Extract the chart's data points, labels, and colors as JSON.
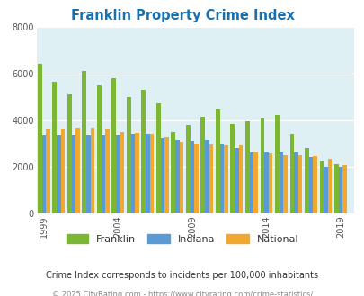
{
  "title": "Franklin Property Crime Index",
  "title_color": "#1a6faf",
  "years": [
    1999,
    2000,
    2001,
    2002,
    2003,
    2004,
    2005,
    2006,
    2007,
    2008,
    2009,
    2010,
    2011,
    2012,
    2013,
    2014,
    2015,
    2016,
    2017,
    2018,
    2019
  ],
  "franklin": [
    6400,
    5650,
    5100,
    6100,
    5500,
    5800,
    5000,
    5300,
    4700,
    3500,
    3800,
    4150,
    4450,
    3850,
    3950,
    4050,
    4200,
    3400,
    2800,
    2200,
    2100
  ],
  "indiana": [
    3350,
    3350,
    3350,
    3350,
    3350,
    3350,
    3400,
    3400,
    3200,
    3150,
    3100,
    3150,
    3000,
    2800,
    2600,
    2600,
    2600,
    2600,
    2400,
    2000,
    1980
  ],
  "national": [
    3600,
    3600,
    3650,
    3650,
    3600,
    3500,
    3450,
    3400,
    3250,
    3050,
    3000,
    2950,
    2900,
    2900,
    2600,
    2550,
    2500,
    2500,
    2450,
    2350,
    2050
  ],
  "franklin_color": "#7cb734",
  "indiana_color": "#5b9bd5",
  "national_color": "#f0a830",
  "bg_color": "#dff0f5",
  "ylim": [
    0,
    8000
  ],
  "yticks": [
    0,
    2000,
    4000,
    6000,
    8000
  ],
  "xtick_labels": [
    "1999",
    "2004",
    "2009",
    "2014",
    "2019"
  ],
  "xtick_positions": [
    1999,
    2004,
    2009,
    2014,
    2019
  ],
  "subtitle": "Crime Index corresponds to incidents per 100,000 inhabitants",
  "subtitle_color": "#333333",
  "footer": "© 2025 CityRating.com - https://www.cityrating.com/crime-statistics/",
  "footer_color": "#888888",
  "legend_labels": [
    "Franklin",
    "Indiana",
    "National"
  ],
  "bar_width": 0.28
}
